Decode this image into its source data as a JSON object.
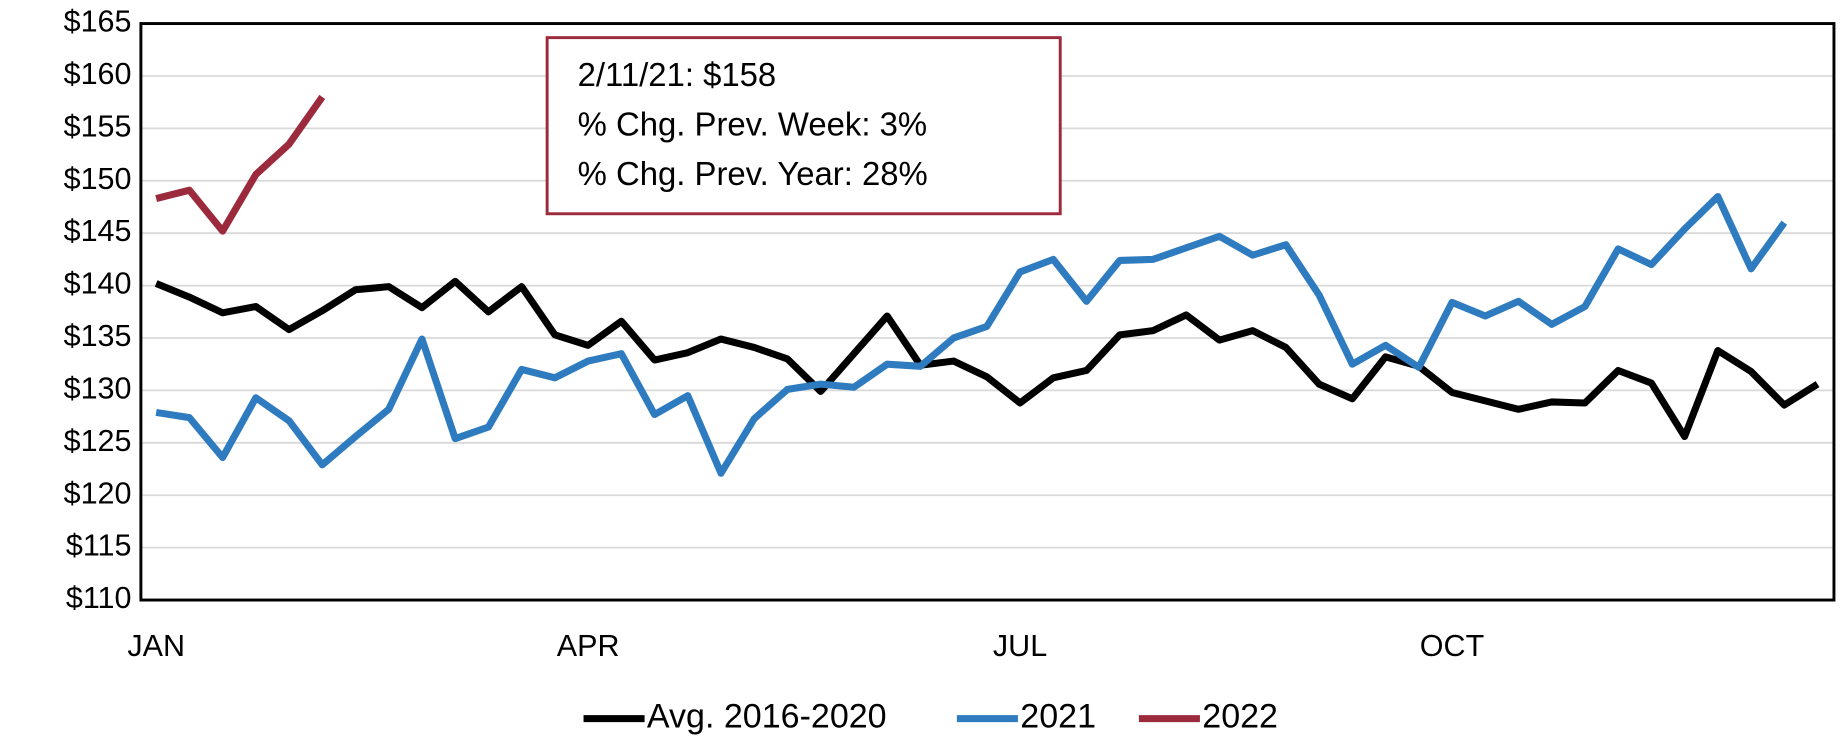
{
  "chart_data": {
    "type": "line",
    "categories": [
      "JAN",
      null,
      null,
      null,
      null,
      null,
      null,
      null,
      null,
      null,
      null,
      null,
      null,
      "APR",
      null,
      null,
      null,
      null,
      null,
      null,
      null,
      null,
      null,
      null,
      null,
      null,
      "JUL",
      null,
      null,
      null,
      null,
      null,
      null,
      null,
      null,
      null,
      null,
      null,
      null,
      "OCT",
      null,
      null,
      null,
      null,
      null,
      null,
      null,
      null,
      null,
      null,
      null
    ],
    "series": [
      {
        "name": "Avg. 2016-2020",
        "color": "#000000",
        "values": [
          140.2,
          138.9,
          137.4,
          138.0,
          135.8,
          137.6,
          139.6,
          139.9,
          137.9,
          140.4,
          137.5,
          139.9,
          135.3,
          134.3,
          136.6,
          132.9,
          133.6,
          134.9,
          134.1,
          133.0,
          129.9,
          133.5,
          137.1,
          132.4,
          132.8,
          131.3,
          128.8,
          131.2,
          131.9,
          135.3,
          135.7,
          137.2,
          134.8,
          135.7,
          134.1,
          130.6,
          129.2,
          133.2,
          132.3,
          129.8,
          129.0,
          128.2,
          128.9,
          128.8,
          131.9,
          130.7,
          125.6,
          133.8,
          131.8,
          128.6,
          130.6
        ]
      },
      {
        "name": "2021",
        "color": "#2e7bbf",
        "values": [
          127.9,
          127.4,
          123.6,
          129.3,
          127.1,
          122.9,
          125.6,
          128.2,
          134.9,
          125.4,
          126.5,
          132.0,
          131.2,
          132.8,
          133.5,
          127.7,
          129.5,
          122.1,
          127.3,
          130.1,
          130.6,
          130.3,
          132.5,
          132.3,
          135.0,
          136.1,
          141.3,
          142.5,
          138.5,
          142.4,
          142.5,
          143.6,
          144.7,
          142.9,
          143.9,
          139.1,
          132.5,
          134.3,
          132.2,
          138.4,
          137.1,
          138.5,
          136.3,
          138.0,
          143.5,
          142.0,
          145.4,
          148.5,
          141.6,
          146.0,
          null
        ]
      },
      {
        "name": "2022",
        "color": "#9b2a3c",
        "values": [
          148.3,
          149.1,
          145.2,
          150.6,
          153.5,
          158.0,
          null,
          null,
          null,
          null,
          null,
          null,
          null,
          null,
          null,
          null,
          null,
          null,
          null,
          null,
          null,
          null,
          null,
          null,
          null,
          null,
          null,
          null,
          null,
          null,
          null,
          null,
          null,
          null,
          null,
          null,
          null,
          null,
          null,
          null,
          null,
          null,
          null,
          null,
          null,
          null,
          null,
          null,
          null,
          null,
          null
        ]
      }
    ],
    "ylim": [
      110,
      165
    ],
    "yticks": [
      {
        "value": 110,
        "label": "$110"
      },
      {
        "value": 115,
        "label": "$115"
      },
      {
        "value": 120,
        "label": "$120"
      },
      {
        "value": 125,
        "label": "$125"
      },
      {
        "value": 130,
        "label": "$130"
      },
      {
        "value": 135,
        "label": "$135"
      },
      {
        "value": 140,
        "label": "$140"
      },
      {
        "value": 145,
        "label": "$145"
      },
      {
        "value": 150,
        "label": "$150"
      },
      {
        "value": 155,
        "label": "$155"
      },
      {
        "value": 160,
        "label": "$160"
      },
      {
        "value": 165,
        "label": "$165"
      }
    ],
    "grid": true,
    "legend": "bottom",
    "annotation": {
      "color": "#9b2a3c",
      "lines": [
        "2/11/21: $158",
        "% Chg. Prev. Week: 3%",
        "% Chg. Prev. Year: 28%"
      ]
    }
  }
}
